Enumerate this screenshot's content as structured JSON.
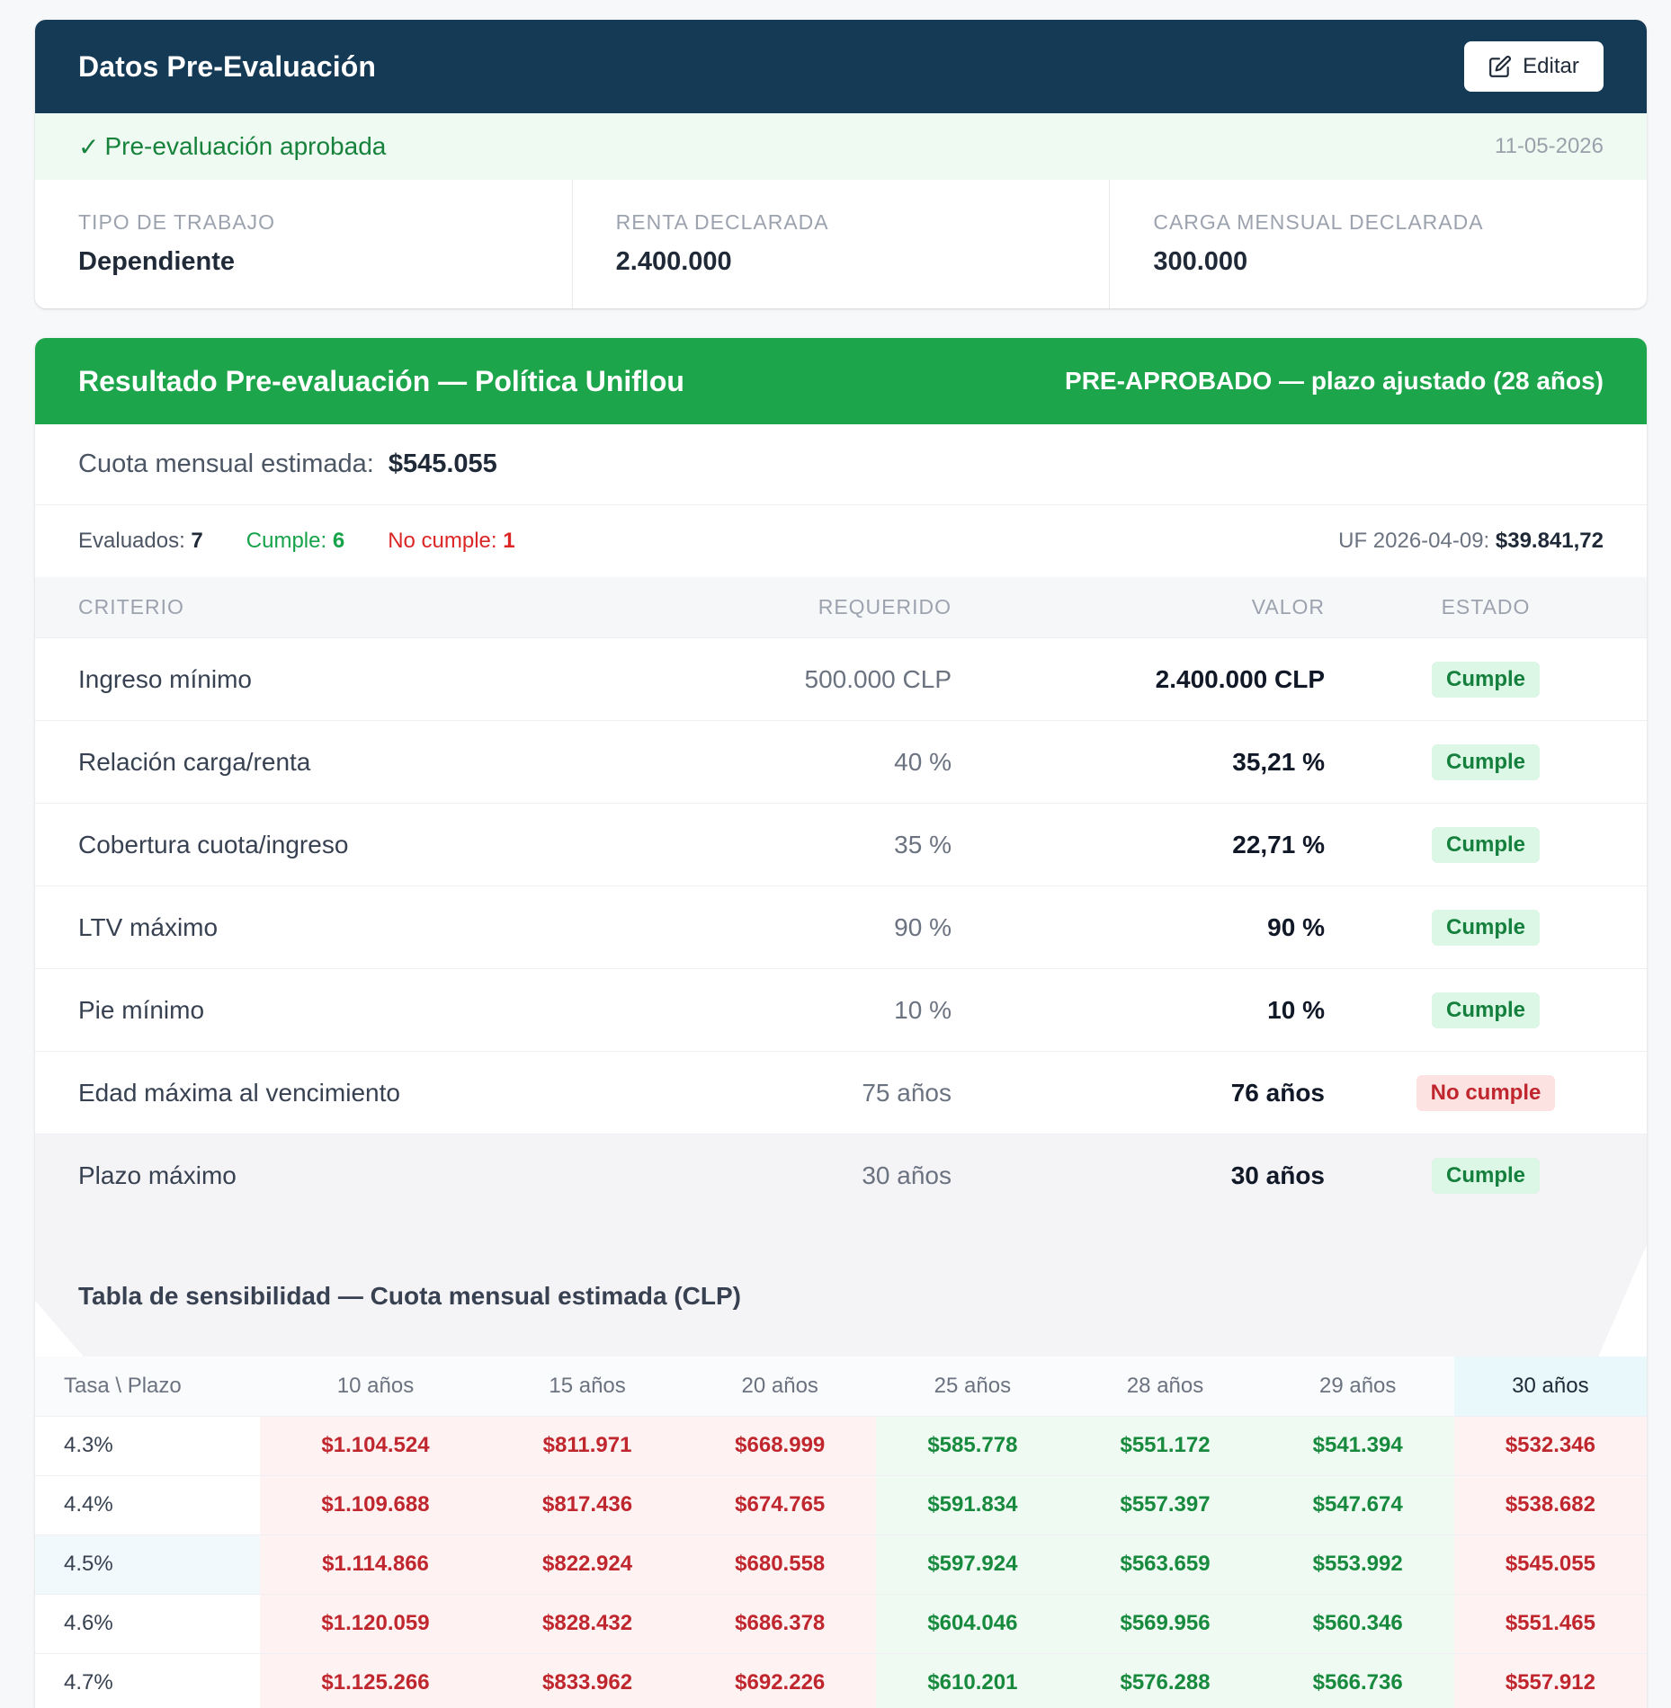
{
  "datos": {
    "title": "Datos Pre-Evaluación",
    "edit_label": "Editar",
    "status_check": "✓",
    "status_text": "Pre-evaluación aprobada",
    "date": "11-05-2026",
    "fields": [
      {
        "label": "TIPO DE TRABAJO",
        "value": "Dependiente"
      },
      {
        "label": "RENTA DECLARADA",
        "value": "2.400.000"
      },
      {
        "label": "CARGA MENSUAL DECLARADA",
        "value": "300.000"
      }
    ]
  },
  "resultado": {
    "title": "Resultado Pre-evaluación — Política Uniflou",
    "verdict": "PRE-APROBADO — plazo ajustado (28 años)",
    "cuota_label": "Cuota mensual estimada:",
    "cuota_value": "$545.055",
    "evaluados_label": "Evaluados:",
    "evaluados_value": "7",
    "cumple_label": "Cumple:",
    "cumple_value": "6",
    "nocumple_label": "No cumple:",
    "nocumple_value": "1",
    "uf_label": "UF 2026-04-09:",
    "uf_value": "$39.841,72",
    "columns": {
      "criterio": "CRITERIO",
      "requerido": "REQUERIDO",
      "valor": "VALOR",
      "estado": "ESTADO"
    },
    "criterios": [
      {
        "name": "Ingreso mínimo",
        "req": "500.000 CLP",
        "val": "2.400.000 CLP",
        "estado": "Cumple"
      },
      {
        "name": "Relación carga/renta",
        "req": "40 %",
        "val": "35,21 %",
        "estado": "Cumple"
      },
      {
        "name": "Cobertura cuota/ingreso",
        "req": "35 %",
        "val": "22,71 %",
        "estado": "Cumple"
      },
      {
        "name": "LTV máximo",
        "req": "90 %",
        "val": "90 %",
        "estado": "Cumple"
      },
      {
        "name": "Pie mínimo",
        "req": "10 %",
        "val": "10 %",
        "estado": "Cumple"
      },
      {
        "name": "Edad máxima al vencimiento",
        "req": "75 años",
        "val": "76 años",
        "estado": "No cumple"
      },
      {
        "name": "Plazo máximo",
        "req": "30 años",
        "val": "30 años",
        "estado": "Cumple"
      }
    ]
  },
  "sensibilidad": {
    "title": "Tabla de sensibilidad — Cuota mensual estimada (CLP)",
    "corner": "Tasa \\ Plazo",
    "plazos": [
      "10 años",
      "15 años",
      "20 años",
      "25 años",
      "28 años",
      "29 años",
      "30 años"
    ],
    "rows": [
      {
        "tasa": "4.3%",
        "values": [
          "$1.104.524",
          "$811.971",
          "$668.999",
          "$585.778",
          "$551.172",
          "$541.394",
          "$532.346"
        ]
      },
      {
        "tasa": "4.4%",
        "values": [
          "$1.109.688",
          "$817.436",
          "$674.765",
          "$591.834",
          "$557.397",
          "$547.674",
          "$538.682"
        ]
      },
      {
        "tasa": "4.5%",
        "values": [
          "$1.114.866",
          "$822.924",
          "$680.558",
          "$597.924",
          "$563.659",
          "$553.992",
          "$545.055"
        ]
      },
      {
        "tasa": "4.6%",
        "values": [
          "$1.120.059",
          "$828.432",
          "$686.378",
          "$604.046",
          "$569.956",
          "$560.346",
          "$551.465"
        ]
      },
      {
        "tasa": "4.7%",
        "values": [
          "$1.125.266",
          "$833.962",
          "$692.226",
          "$610.201",
          "$576.288",
          "$566.736",
          "$557.912"
        ]
      }
    ],
    "cell_status": [
      "red",
      "red",
      "red",
      "green",
      "green",
      "green",
      "red"
    ],
    "highlight_row": 2,
    "highlight_col": 6
  }
}
